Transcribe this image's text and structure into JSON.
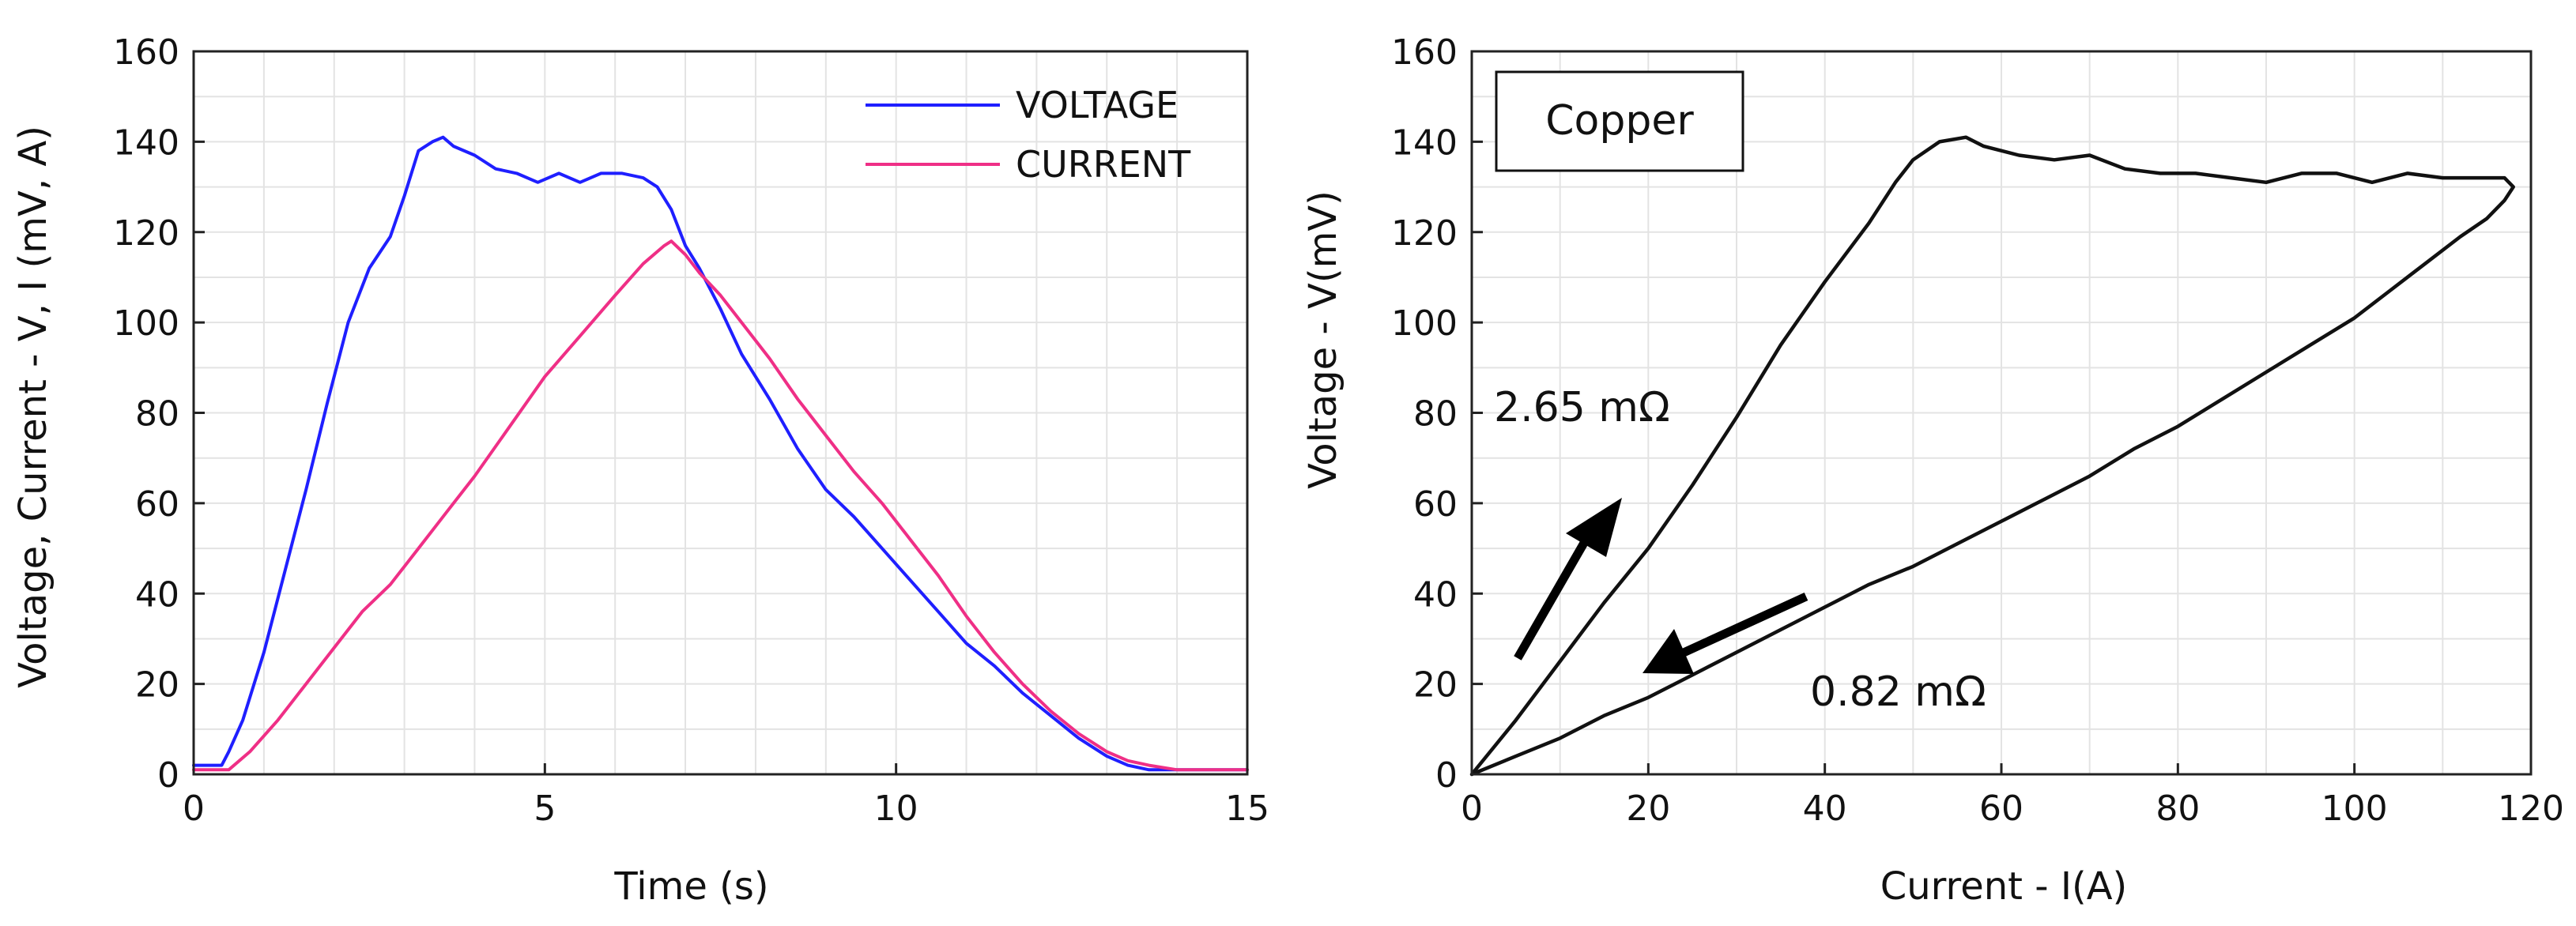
{
  "chart_data": [
    {
      "type": "line",
      "xlabel": "Time (s)",
      "ylabel": "Voltage, Current - V, I (mV, A)",
      "xlim": [
        0,
        15
      ],
      "ylim": [
        0,
        160
      ],
      "xticks": [
        "0",
        "5",
        "10",
        "15"
      ],
      "yticks": [
        "0",
        "20",
        "40",
        "60",
        "80",
        "100",
        "120",
        "140",
        "160"
      ],
      "grid": true,
      "legend_position": "top-right",
      "series": [
        {
          "name": "VOLTAGE",
          "color": "#1f1fff",
          "x": [
            0,
            0.4,
            0.5,
            0.7,
            1.0,
            1.3,
            1.6,
            1.9,
            2.2,
            2.5,
            2.8,
            3.0,
            3.2,
            3.4,
            3.55,
            3.7,
            4.0,
            4.3,
            4.6,
            4.9,
            5.2,
            5.5,
            5.8,
            6.1,
            6.4,
            6.6,
            6.8,
            7.0,
            7.2,
            7.5,
            7.8,
            8.2,
            8.6,
            9.0,
            9.4,
            9.8,
            10.2,
            10.6,
            11.0,
            11.4,
            11.8,
            12.2,
            12.6,
            13.0,
            13.3,
            13.6,
            14.0,
            14.5,
            15.0
          ],
          "values": [
            2,
            2,
            5,
            12,
            27,
            45,
            63,
            82,
            100,
            112,
            119,
            128,
            138,
            140,
            141,
            139,
            137,
            134,
            133,
            131,
            133,
            131,
            133,
            133,
            132,
            130,
            125,
            117,
            112,
            103,
            93,
            83,
            72,
            63,
            57,
            50,
            43,
            36,
            29,
            24,
            18,
            13,
            8,
            4,
            2,
            1,
            1,
            1,
            1
          ]
        },
        {
          "name": "CURRENT",
          "color": "#ef2f86",
          "x": [
            0,
            0.5,
            0.8,
            1.2,
            1.6,
            2.0,
            2.4,
            2.8,
            3.2,
            3.6,
            4.0,
            4.5,
            5.0,
            5.5,
            6.0,
            6.4,
            6.7,
            6.8,
            7.0,
            7.2,
            7.5,
            7.8,
            8.2,
            8.6,
            9.0,
            9.4,
            9.8,
            10.2,
            10.6,
            11.0,
            11.4,
            11.8,
            12.2,
            12.6,
            13.0,
            13.3,
            13.6,
            14.0,
            14.5,
            15.0
          ],
          "values": [
            1,
            1,
            5,
            12,
            20,
            28,
            36,
            42,
            50,
            58,
            66,
            77,
            88,
            97,
            106,
            113,
            117,
            118,
            115,
            111,
            106,
            100,
            92,
            83,
            75,
            67,
            60,
            52,
            44,
            35,
            27,
            20,
            14,
            9,
            5,
            3,
            2,
            1,
            1,
            1
          ]
        }
      ]
    },
    {
      "type": "line",
      "xlabel": "Current - I(A)",
      "ylabel": "Voltage - V(mV)",
      "xlim": [
        0,
        120
      ],
      "ylim": [
        0,
        160
      ],
      "xticks": [
        "0",
        "20",
        "40",
        "60",
        "80",
        "100",
        "120"
      ],
      "yticks": [
        "0",
        "20",
        "40",
        "60",
        "80",
        "100",
        "120",
        "140",
        "160"
      ],
      "grid": true,
      "series": [
        {
          "name": "Copper",
          "color": "#111111",
          "x": [
            0,
            5,
            10,
            15,
            20,
            25,
            30,
            35,
            40,
            45,
            48,
            50,
            53,
            56,
            58,
            62,
            66,
            70,
            74,
            78,
            82,
            86,
            90,
            94,
            98,
            102,
            106,
            110,
            114,
            117,
            118,
            117,
            115,
            112,
            108,
            104,
            100,
            95,
            90,
            85,
            80,
            75,
            70,
            65,
            60,
            55,
            50,
            45,
            40,
            35,
            30,
            25,
            20,
            15,
            10,
            5,
            0
          ],
          "values": [
            0,
            12,
            25,
            38,
            50,
            64,
            79,
            95,
            109,
            122,
            131,
            136,
            140,
            141,
            139,
            137,
            136,
            137,
            134,
            133,
            133,
            132,
            131,
            133,
            133,
            131,
            133,
            132,
            132,
            132,
            130,
            127,
            123,
            119,
            113,
            107,
            101,
            95,
            89,
            83,
            77,
            72,
            66,
            61,
            56,
            51,
            46,
            42,
            37,
            32,
            27,
            22,
            17,
            13,
            8,
            4,
            0
          ]
        }
      ],
      "legend_box": "Copper",
      "annotations": [
        "2.65 mΩ",
        "0.82 mΩ"
      ]
    }
  ]
}
